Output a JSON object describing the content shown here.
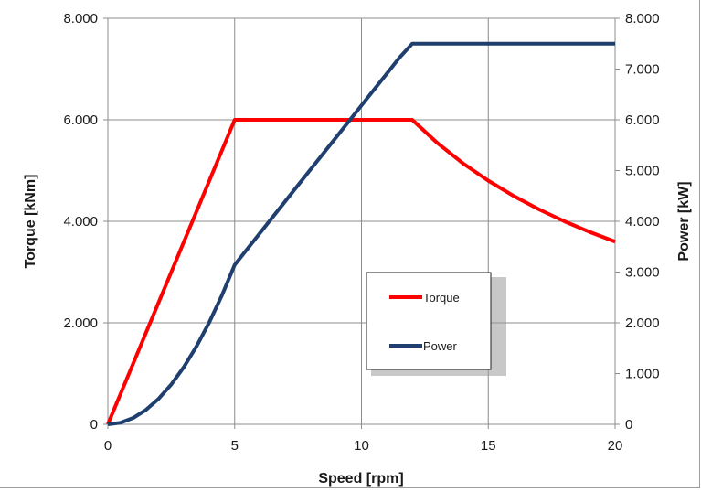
{
  "chart_data": {
    "type": "line",
    "title": "",
    "xlabel": "Speed [rpm]",
    "ylabel_left": "Torque [kNm]",
    "ylabel_right": "Power [kW]",
    "xlim": [
      0,
      20
    ],
    "ylim_left": [
      0,
      8000
    ],
    "ylim_right": [
      0,
      8000
    ],
    "x_ticks": [
      {
        "value": 0,
        "label": "0"
      },
      {
        "value": 5,
        "label": "5"
      },
      {
        "value": 10,
        "label": "10"
      },
      {
        "value": 15,
        "label": "15"
      },
      {
        "value": 20,
        "label": "20"
      }
    ],
    "y_left_ticks": [
      {
        "value": 0,
        "label": "0"
      },
      {
        "value": 2000,
        "label": "2.000"
      },
      {
        "value": 4000,
        "label": "4.000"
      },
      {
        "value": 6000,
        "label": "6.000"
      },
      {
        "value": 8000,
        "label": "8.000"
      }
    ],
    "y_right_ticks": [
      {
        "value": 0,
        "label": "0"
      },
      {
        "value": 1000,
        "label": "1.000"
      },
      {
        "value": 2000,
        "label": "2.000"
      },
      {
        "value": 3000,
        "label": "3.000"
      },
      {
        "value": 4000,
        "label": "4.000"
      },
      {
        "value": 5000,
        "label": "5.000"
      },
      {
        "value": 6000,
        "label": "6.000"
      },
      {
        "value": 7000,
        "label": "7.000"
      },
      {
        "value": 8000,
        "label": "8.000"
      }
    ],
    "grid": true,
    "legend_position": "center-right",
    "series": [
      {
        "name": "Torque",
        "axis": "left",
        "color": "#ff0000",
        "x": [
          0,
          5,
          12,
          13,
          14,
          15,
          16,
          17,
          18,
          19,
          20
        ],
        "y": [
          0,
          6000,
          6000,
          5538,
          5143,
          4800,
          4500,
          4235,
          4000,
          3789,
          3600
        ]
      },
      {
        "name": "Power",
        "axis": "right",
        "color": "#1f3f6e",
        "x": [
          0,
          0.5,
          1,
          1.5,
          2,
          2.5,
          3,
          3.5,
          4,
          4.5,
          5,
          6,
          7,
          8,
          9,
          10,
          11,
          11.5,
          12,
          13,
          14,
          15,
          16,
          17,
          18,
          19,
          20
        ],
        "y": [
          0,
          31,
          126,
          283,
          503,
          785,
          1131,
          1539,
          2011,
          2545,
          3142,
          3770,
          4398,
          5027,
          5655,
          6283,
          6912,
          7226,
          7500,
          7500,
          7500,
          7500,
          7500,
          7500,
          7500,
          7500,
          7500
        ]
      }
    ]
  }
}
